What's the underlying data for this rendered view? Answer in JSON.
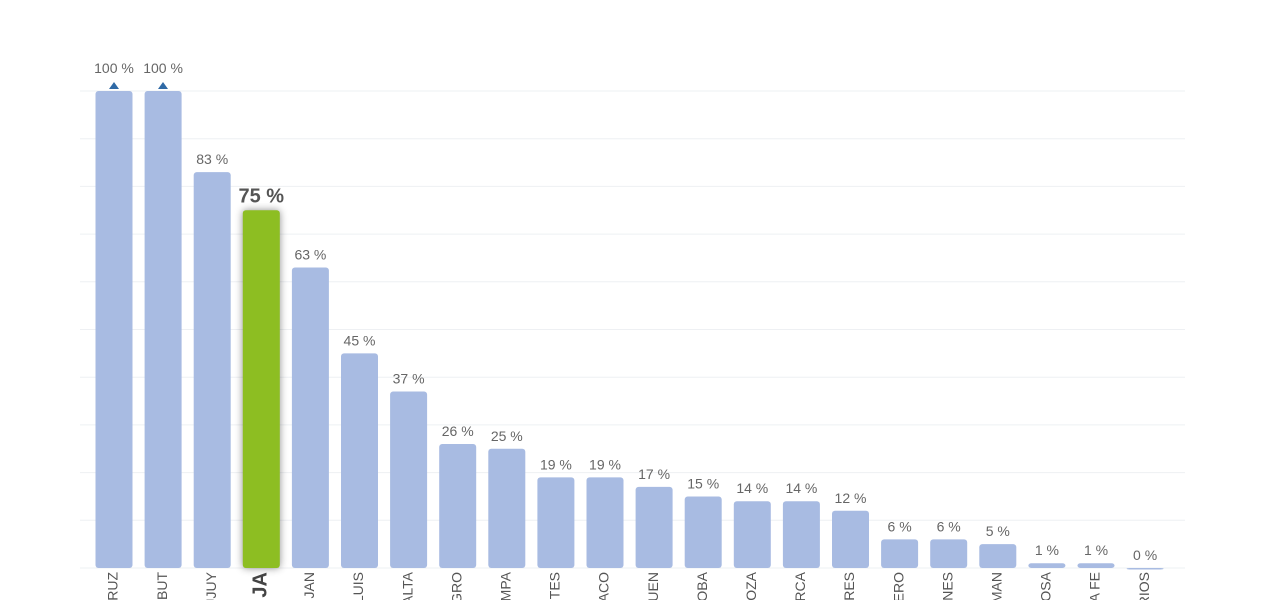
{
  "chart_data": {
    "type": "bar",
    "categories": [
      "RUZ",
      "BUT",
      "UJUY",
      "JA",
      "JAN",
      "LUIS",
      "ALTA",
      "GRO",
      "MPA",
      "NTES",
      "ACO",
      "UEN",
      "OBA",
      "OZA",
      "RCA",
      "RES",
      "ERO",
      "NES",
      "MAN",
      "OSA",
      "A FE",
      "RIOS"
    ],
    "values": [
      100,
      100,
      83,
      75,
      63,
      45,
      37,
      26,
      25,
      19,
      19,
      17,
      15,
      14,
      14,
      12,
      6,
      6,
      5,
      1,
      1,
      0
    ],
    "value_labels": [
      "100 %",
      "100 %",
      "83 %",
      "75 %",
      "63 %",
      "45 %",
      "37 %",
      "26 %",
      "25 %",
      "19 %",
      "19 %",
      "17 %",
      "15 %",
      "14 %",
      "14 %",
      "12 %",
      "6 %",
      "6 %",
      "5 %",
      "1 %",
      "1 %",
      "0 %"
    ],
    "color": "#a8bbe2",
    "highlight": {
      "index": 3,
      "color": "#8dbe22"
    },
    "ylim": [
      0,
      100
    ],
    "yticks": [
      0,
      10,
      20,
      30,
      40,
      50,
      60,
      70,
      80,
      90,
      100
    ],
    "grid": true
  }
}
